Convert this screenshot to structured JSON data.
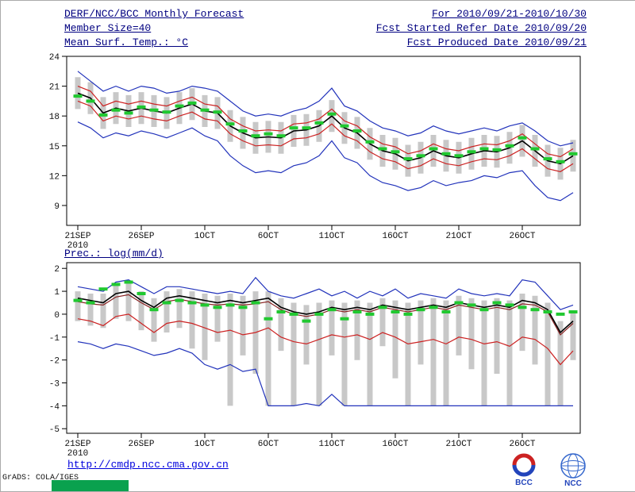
{
  "header": {
    "title": "DERF/NCC/BCC Monthly Forecast",
    "member_size": "Member Size=40",
    "for_range": "For 2010/09/21-2010/10/30",
    "fcst_started": "Fcst Started Refer Date 2010/09/20",
    "fcst_produced": "Fcst Produced Date 2010/09/21"
  },
  "footer": {
    "url": "http://cmdp.ncc.cma.gov.cn",
    "grads_credit": "GrADS: COLA/IGES",
    "bcc_label": "BCC",
    "ncc_label": "NCC"
  },
  "colors": {
    "header_text": "#000080",
    "ensemble_extreme_line": "#2233bb",
    "quartile_line": "#cc2222",
    "dark_quartile_line": "#882222",
    "mean_line": "#000000",
    "obs_dash": "#20c830",
    "spread_bar": "#c8c8c8",
    "link": "#0000dd",
    "green_box": "#0aa14e"
  },
  "chart_data": [
    {
      "id": "temp",
      "type": "line",
      "title": "Mean Surf. Temp.: °C",
      "x_tick_labels": [
        "21SEP",
        "26SEP",
        "1OCT",
        "6OCT",
        "11OCT",
        "16OCT",
        "21OCT",
        "26OCT"
      ],
      "x_tick_days": [
        0,
        5,
        10,
        15,
        20,
        25,
        30,
        35
      ],
      "x_year_label": "2010",
      "ylim": [
        7.0,
        24.0
      ],
      "yticks": [
        24,
        21,
        18,
        15,
        12,
        9
      ],
      "grid": false,
      "legend": "none",
      "series": [
        {
          "name": "temp-ensemble-max",
          "color": "#2233bb",
          "values": [
            22.5,
            21.5,
            20.5,
            21.0,
            20.5,
            21.0,
            20.8,
            20.3,
            20.5,
            21.0,
            20.8,
            20.5,
            19.5,
            18.5,
            18.0,
            18.2,
            18.0,
            18.5,
            18.8,
            19.5,
            20.8,
            19.0,
            18.5,
            17.5,
            16.8,
            16.5,
            16.0,
            16.3,
            17.0,
            16.5,
            16.2,
            16.5,
            16.8,
            16.5,
            17.0,
            17.3,
            16.5,
            15.5,
            15.0,
            15.3
          ]
        },
        {
          "name": "temp-ensemble-min",
          "color": "#2233bb",
          "values": [
            17.4,
            16.8,
            15.8,
            16.3,
            16.0,
            16.5,
            16.2,
            15.8,
            16.3,
            16.8,
            16.0,
            15.5,
            14.0,
            13.0,
            12.3,
            12.5,
            12.3,
            13.0,
            13.3,
            14.0,
            15.5,
            13.8,
            13.3,
            12.0,
            11.3,
            11.0,
            10.5,
            10.8,
            11.5,
            11.0,
            11.3,
            11.5,
            12.0,
            11.8,
            12.3,
            12.5,
            11.0,
            9.8,
            9.5,
            10.3
          ]
        },
        {
          "name": "temp-upper-quartile",
          "color": "#cc2222",
          "values": [
            21.0,
            20.5,
            19.0,
            19.5,
            19.2,
            19.5,
            19.2,
            19.0,
            19.5,
            19.9,
            19.2,
            19.0,
            17.7,
            17.0,
            16.5,
            16.6,
            16.5,
            17.2,
            17.3,
            17.7,
            18.7,
            17.5,
            17.0,
            15.9,
            15.2,
            14.9,
            14.2,
            14.5,
            15.2,
            14.7,
            14.5,
            14.9,
            15.2,
            15.1,
            15.5,
            16.2,
            15.2,
            14.2,
            13.9,
            14.7
          ]
        },
        {
          "name": "temp-lower-quartile",
          "color": "#cc2222",
          "values": [
            19.5,
            19.0,
            17.5,
            18.0,
            17.7,
            18.0,
            17.7,
            17.5,
            18.0,
            18.4,
            17.7,
            17.5,
            16.2,
            15.5,
            15.0,
            15.1,
            15.0,
            15.7,
            15.8,
            16.2,
            17.2,
            16.0,
            15.5,
            14.4,
            13.7,
            13.4,
            12.7,
            13.0,
            13.7,
            13.2,
            13.0,
            13.4,
            13.7,
            13.6,
            14.0,
            14.7,
            13.7,
            12.7,
            12.4,
            13.2
          ]
        },
        {
          "name": "temp-ensemble-mean",
          "color": "#000000",
          "values": [
            20.3,
            19.8,
            18.3,
            18.8,
            18.5,
            18.8,
            18.5,
            18.3,
            18.8,
            19.2,
            18.5,
            18.3,
            17.0,
            16.3,
            15.8,
            15.9,
            15.8,
            16.5,
            16.6,
            17.0,
            18.0,
            16.8,
            16.3,
            15.2,
            14.5,
            14.2,
            13.5,
            13.8,
            14.5,
            14.0,
            13.8,
            14.2,
            14.5,
            14.4,
            14.8,
            15.5,
            14.5,
            13.5,
            13.2,
            14.0
          ]
        }
      ],
      "bars": {
        "name": "temp-ensemble-spread",
        "color": "#c8c8c8",
        "low": [
          18.7,
          18.2,
          16.7,
          17.2,
          16.9,
          17.2,
          16.9,
          16.7,
          17.2,
          17.6,
          16.9,
          16.7,
          15.4,
          14.7,
          14.2,
          14.3,
          14.2,
          14.9,
          15.0,
          15.4,
          16.4,
          15.2,
          14.7,
          13.6,
          12.9,
          12.6,
          11.9,
          12.2,
          12.9,
          12.4,
          12.2,
          12.6,
          12.9,
          12.8,
          13.2,
          13.9,
          12.9,
          11.9,
          11.6,
          12.4
        ],
        "high": [
          21.9,
          21.4,
          19.9,
          20.4,
          20.1,
          20.4,
          20.1,
          19.9,
          20.4,
          20.8,
          20.1,
          19.9,
          18.6,
          17.9,
          17.4,
          17.5,
          17.4,
          18.1,
          18.2,
          18.6,
          19.6,
          18.4,
          17.9,
          16.8,
          16.1,
          15.8,
          15.1,
          15.4,
          16.1,
          15.6,
          15.4,
          15.8,
          16.1,
          16.0,
          16.4,
          17.1,
          16.1,
          15.1,
          14.8,
          15.6
        ]
      },
      "dashes": {
        "name": "temp-obs-dash",
        "color": "#20c830",
        "values": [
          20.0,
          19.5,
          18.1,
          18.6,
          18.3,
          18.9,
          18.6,
          18.4,
          19.0,
          19.3,
          18.6,
          18.4,
          17.2,
          16.5,
          16.0,
          16.2,
          16.0,
          16.8,
          16.8,
          17.3,
          18.2,
          17.0,
          16.5,
          15.4,
          14.7,
          14.4,
          13.7,
          14.0,
          14.7,
          14.2,
          14.0,
          14.4,
          14.7,
          14.6,
          15.0,
          15.8,
          14.7,
          13.7,
          13.4,
          14.2
        ]
      }
    },
    {
      "id": "prec",
      "type": "line",
      "title": "Prec.: log(mm/d)",
      "x_tick_labels": [
        "21SEP",
        "26SEP",
        "1OCT",
        "6OCT",
        "11OCT",
        "16OCT",
        "21OCT",
        "26OCT"
      ],
      "x_tick_days": [
        0,
        5,
        10,
        15,
        20,
        25,
        30,
        35
      ],
      "x_year_label": "2010",
      "ylim": [
        -5.2,
        2.25
      ],
      "yticks": [
        2,
        1,
        0,
        -1,
        -2,
        -3,
        -4,
        -5
      ],
      "grid": false,
      "legend": "none",
      "series": [
        {
          "name": "prec-ensemble-max",
          "color": "#2233bb",
          "values": [
            1.2,
            1.1,
            1.0,
            1.4,
            1.5,
            1.2,
            0.9,
            1.2,
            1.2,
            1.1,
            1.0,
            0.9,
            1.0,
            0.9,
            1.6,
            1.0,
            0.8,
            0.7,
            0.9,
            1.1,
            0.8,
            1.0,
            0.7,
            1.0,
            0.8,
            1.1,
            0.7,
            0.9,
            0.8,
            0.7,
            1.1,
            0.9,
            0.8,
            0.9,
            0.8,
            1.5,
            1.4,
            0.8,
            0.2,
            0.4
          ]
        },
        {
          "name": "prec-ensemble-min",
          "color": "#2233bb",
          "values": [
            -1.2,
            -1.3,
            -1.5,
            -1.3,
            -1.4,
            -1.6,
            -1.8,
            -1.7,
            -1.5,
            -1.7,
            -2.2,
            -2.4,
            -2.2,
            -2.5,
            -2.4,
            -4.0,
            -4.0,
            -4.0,
            -3.9,
            -4.0,
            -3.5,
            -4.0,
            -4.0,
            -4.0,
            -4.0,
            -4.0,
            -4.0,
            -4.0,
            -4.0,
            -4.0,
            -4.0,
            -4.0,
            -4.0,
            -4.0,
            -4.0,
            -4.0,
            -4.0,
            -4.0,
            -4.0,
            -4.0
          ]
        },
        {
          "name": "prec-upper-quartile",
          "color": "#882222",
          "values": [
            0.55,
            0.45,
            0.4,
            0.75,
            0.85,
            0.5,
            0.2,
            0.55,
            0.65,
            0.55,
            0.45,
            0.4,
            0.45,
            0.4,
            0.45,
            0.55,
            0.2,
            0.0,
            -0.1,
            0.0,
            0.2,
            0.1,
            0.2,
            0.1,
            0.3,
            0.2,
            0.1,
            0.2,
            0.3,
            0.2,
            0.4,
            0.3,
            0.2,
            0.3,
            0.2,
            0.45,
            0.4,
            0.1,
            -0.9,
            -0.4
          ]
        },
        {
          "name": "prec-lower-quartile",
          "color": "#cc2222",
          "values": [
            -0.2,
            -0.3,
            -0.5,
            -0.1,
            0.0,
            -0.4,
            -0.8,
            -0.4,
            -0.3,
            -0.4,
            -0.6,
            -0.8,
            -0.7,
            -0.9,
            -0.8,
            -0.6,
            -1.0,
            -1.2,
            -1.3,
            -1.1,
            -0.9,
            -1.0,
            -0.9,
            -1.1,
            -0.8,
            -1.0,
            -1.3,
            -1.2,
            -1.1,
            -1.3,
            -1.0,
            -1.1,
            -1.3,
            -1.2,
            -1.4,
            -1.0,
            -1.1,
            -1.5,
            -2.2,
            -1.6
          ]
        },
        {
          "name": "prec-ensemble-mean",
          "color": "#000000",
          "values": [
            0.7,
            0.6,
            0.5,
            0.9,
            1.0,
            0.6,
            0.3,
            0.7,
            0.8,
            0.7,
            0.6,
            0.5,
            0.6,
            0.5,
            0.6,
            0.7,
            0.3,
            0.1,
            0.0,
            0.1,
            0.3,
            0.2,
            0.3,
            0.2,
            0.4,
            0.3,
            0.2,
            0.3,
            0.4,
            0.3,
            0.5,
            0.4,
            0.3,
            0.4,
            0.3,
            0.6,
            0.5,
            0.2,
            -0.8,
            -0.3
          ]
        }
      ],
      "bars": {
        "name": "prec-ensemble-spread",
        "color": "#c8c8c8",
        "low": [
          -0.3,
          -0.5,
          -0.6,
          -0.2,
          -0.3,
          -0.7,
          -1.2,
          -0.8,
          -0.6,
          -1.5,
          -2.0,
          -1.2,
          -4.0,
          -1.8,
          -2.6,
          -4.0,
          -1.6,
          -4.0,
          -2.2,
          -4.0,
          -1.8,
          -4.0,
          -2.0,
          -4.0,
          -1.4,
          -2.8,
          -4.0,
          -2.2,
          -4.0,
          -4.0,
          -1.8,
          -2.4,
          -4.0,
          -2.6,
          -4.0,
          -1.6,
          -2.2,
          -4.0,
          -4.0,
          -2.0
        ],
        "high": [
          1.0,
          0.9,
          0.9,
          1.3,
          1.4,
          1.0,
          0.7,
          1.0,
          1.1,
          1.0,
          0.9,
          0.8,
          0.9,
          0.8,
          1.0,
          1.0,
          0.7,
          0.5,
          0.4,
          0.5,
          0.6,
          0.5,
          0.6,
          0.5,
          0.7,
          0.6,
          0.5,
          0.6,
          0.7,
          0.6,
          0.8,
          0.7,
          0.6,
          0.7,
          0.6,
          0.9,
          0.8,
          0.5,
          -0.3,
          0.1
        ]
      },
      "dashes": {
        "name": "prec-obs-dash",
        "color": "#20c830",
        "values": [
          0.6,
          0.5,
          1.1,
          1.3,
          1.4,
          0.9,
          0.2,
          0.5,
          0.6,
          0.5,
          0.4,
          0.3,
          0.4,
          0.3,
          0.5,
          -0.2,
          0.1,
          0.0,
          -0.3,
          0.0,
          0.2,
          -0.2,
          0.1,
          0.0,
          0.3,
          0.1,
          0.0,
          0.2,
          0.3,
          0.1,
          0.5,
          0.4,
          0.2,
          0.5,
          0.4,
          0.3,
          0.2,
          0.1,
          0.0,
          0.1
        ]
      }
    }
  ]
}
